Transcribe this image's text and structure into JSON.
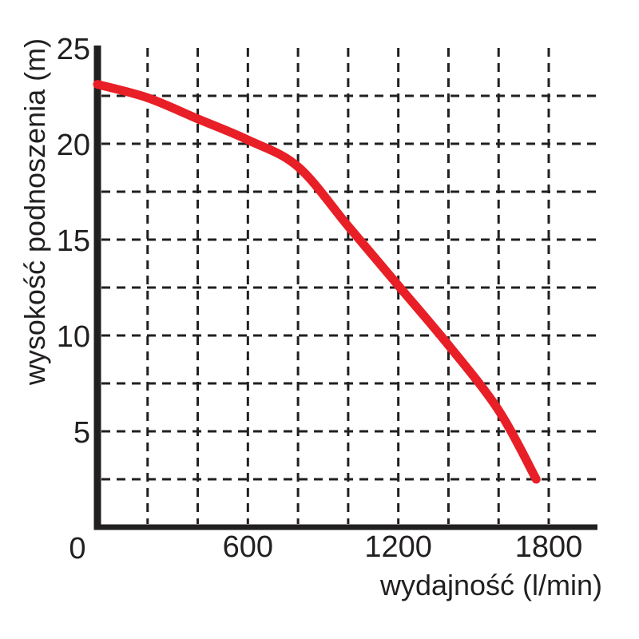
{
  "figure": {
    "background": "#ffffff",
    "axis_color": "#221f20",
    "grid_color": "#221f20",
    "curve_color": "#e81f26"
  },
  "chart_data": {
    "type": "line",
    "title": "",
    "xlabel": "wydajność (l/min)",
    "ylabel": "wysokość podnoszenia (m)",
    "xlim": [
      0,
      2000
    ],
    "ylim": [
      0,
      25
    ],
    "x_grid_step": 200,
    "y_grid_step": 2.5,
    "grid_style": "dashed",
    "legend": "none",
    "origin_label": "0",
    "x_ticks": [
      {
        "value": 600,
        "label": "600"
      },
      {
        "value": 1200,
        "label": "1200"
      },
      {
        "value": 1800,
        "label": "1800"
      }
    ],
    "y_ticks": [
      {
        "value": 5,
        "label": "5"
      },
      {
        "value": 10,
        "label": "10"
      },
      {
        "value": 15,
        "label": "15"
      },
      {
        "value": 20,
        "label": "20"
      },
      {
        "value": 25,
        "label": "25"
      }
    ],
    "series": [
      {
        "name": "pump-performance-curve",
        "color": "#e81f26",
        "x": [
          0,
          200,
          400,
          600,
          800,
          1000,
          1200,
          1400,
          1600,
          1750
        ],
        "y": [
          23.1,
          22.4,
          21.3,
          20.2,
          18.8,
          15.7,
          12.6,
          9.5,
          6.1,
          2.5
        ]
      }
    ]
  }
}
